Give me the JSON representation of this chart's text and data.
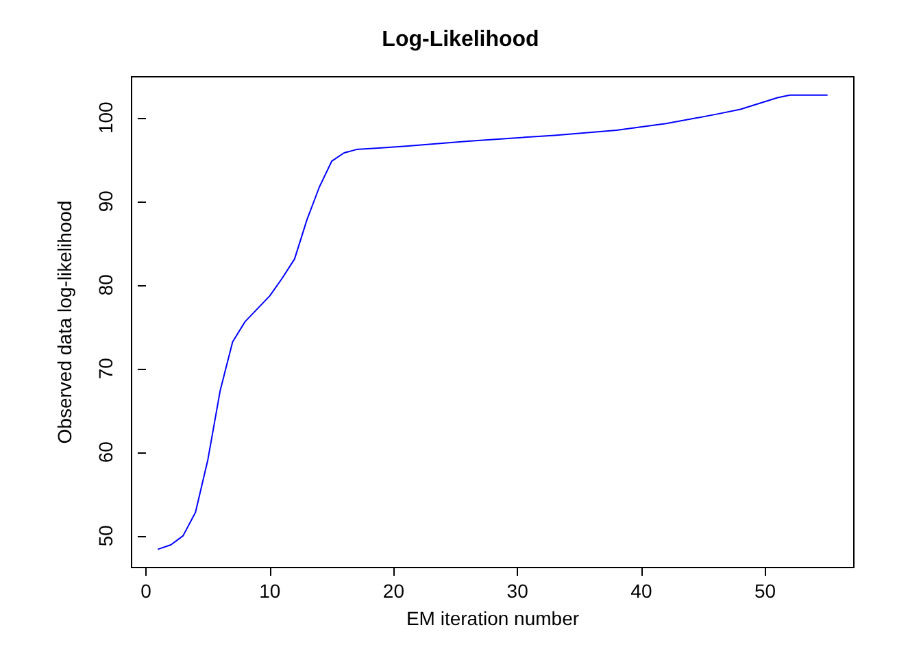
{
  "chart_data": {
    "type": "line",
    "title": "Log-Likelihood",
    "xlabel": "EM iteration number",
    "ylabel": "Observed data log-likelihood",
    "x": [
      1,
      2,
      3,
      4,
      5,
      6,
      7,
      8,
      10,
      11,
      12,
      13,
      14,
      15,
      16,
      17,
      19,
      21,
      26,
      33,
      38,
      42,
      46,
      48,
      49.5,
      51,
      52,
      55
    ],
    "series": [
      {
        "color": "#0000ff",
        "values": [
          48.4,
          48.9,
          50.0,
          52.8,
          59.1,
          67.4,
          73.2,
          75.6,
          78.7,
          80.8,
          83.1,
          87.8,
          91.7,
          94.8,
          95.8,
          96.2,
          96.4,
          96.6,
          97.2,
          97.9,
          98.5,
          99.3,
          100.4,
          101.0,
          101.7,
          102.4,
          102.7,
          102.7
        ]
      }
    ],
    "xlim": [
      -1.16,
      57.16
    ],
    "ylim": [
      46.2,
      104.9
    ],
    "xticks": [
      0,
      10,
      20,
      30,
      40,
      50
    ],
    "yticks": [
      50,
      60,
      70,
      80,
      90,
      100
    ],
    "grid": false,
    "marker": "none",
    "line_style": "solid"
  }
}
